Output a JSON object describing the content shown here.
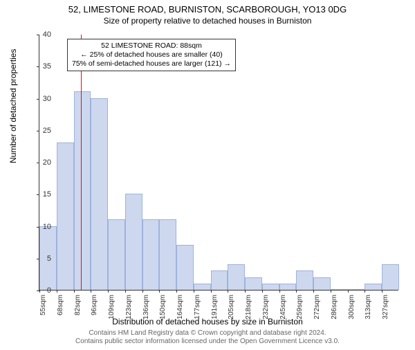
{
  "header": {
    "title": "52, LIMESTONE ROAD, BURNISTON, SCARBOROUGH, YO13 0DG",
    "subtitle": "Size of property relative to detached houses in Burniston"
  },
  "axis": {
    "ylabel": "Number of detached properties",
    "xlabel": "Distribution of detached houses by size in Burniston"
  },
  "footer": {
    "line1": "Contains HM Land Registry data © Crown copyright and database right 2024.",
    "line2": "Contains public sector information licensed under the Open Government Licence v3.0."
  },
  "chart": {
    "type": "histogram",
    "ylim": [
      0,
      40
    ],
    "yticks": [
      0,
      5,
      10,
      15,
      20,
      25,
      30,
      35,
      40
    ],
    "xtick_labels": [
      "55sqm",
      "68sqm",
      "82sqm",
      "96sqm",
      "109sqm",
      "123sqm",
      "136sqm",
      "150sqm",
      "164sqm",
      "177sqm",
      "191sqm",
      "205sqm",
      "218sqm",
      "232sqm",
      "245sqm",
      "259sqm",
      "272sqm",
      "286sqm",
      "300sqm",
      "313sqm",
      "327sqm"
    ],
    "bar_color": "#cdd8ef",
    "bar_border": "#9fb2db",
    "values": [
      10,
      23,
      31,
      30,
      11,
      15,
      11,
      11,
      7,
      1,
      3,
      4,
      2,
      1,
      1,
      3,
      2,
      0,
      0,
      1,
      4
    ],
    "background_color": "#ffffff",
    "axis_color": "#333333",
    "ref_line": {
      "position_sqm": 88,
      "color": "#ff0000"
    },
    "annotation": {
      "line1": "52 LIMESTONE ROAD: 88sqm",
      "line2": "← 25% of detached houses are smaller (40)",
      "line3": "75% of semi-detached houses are larger (121) →",
      "border_color": "#333333"
    }
  }
}
